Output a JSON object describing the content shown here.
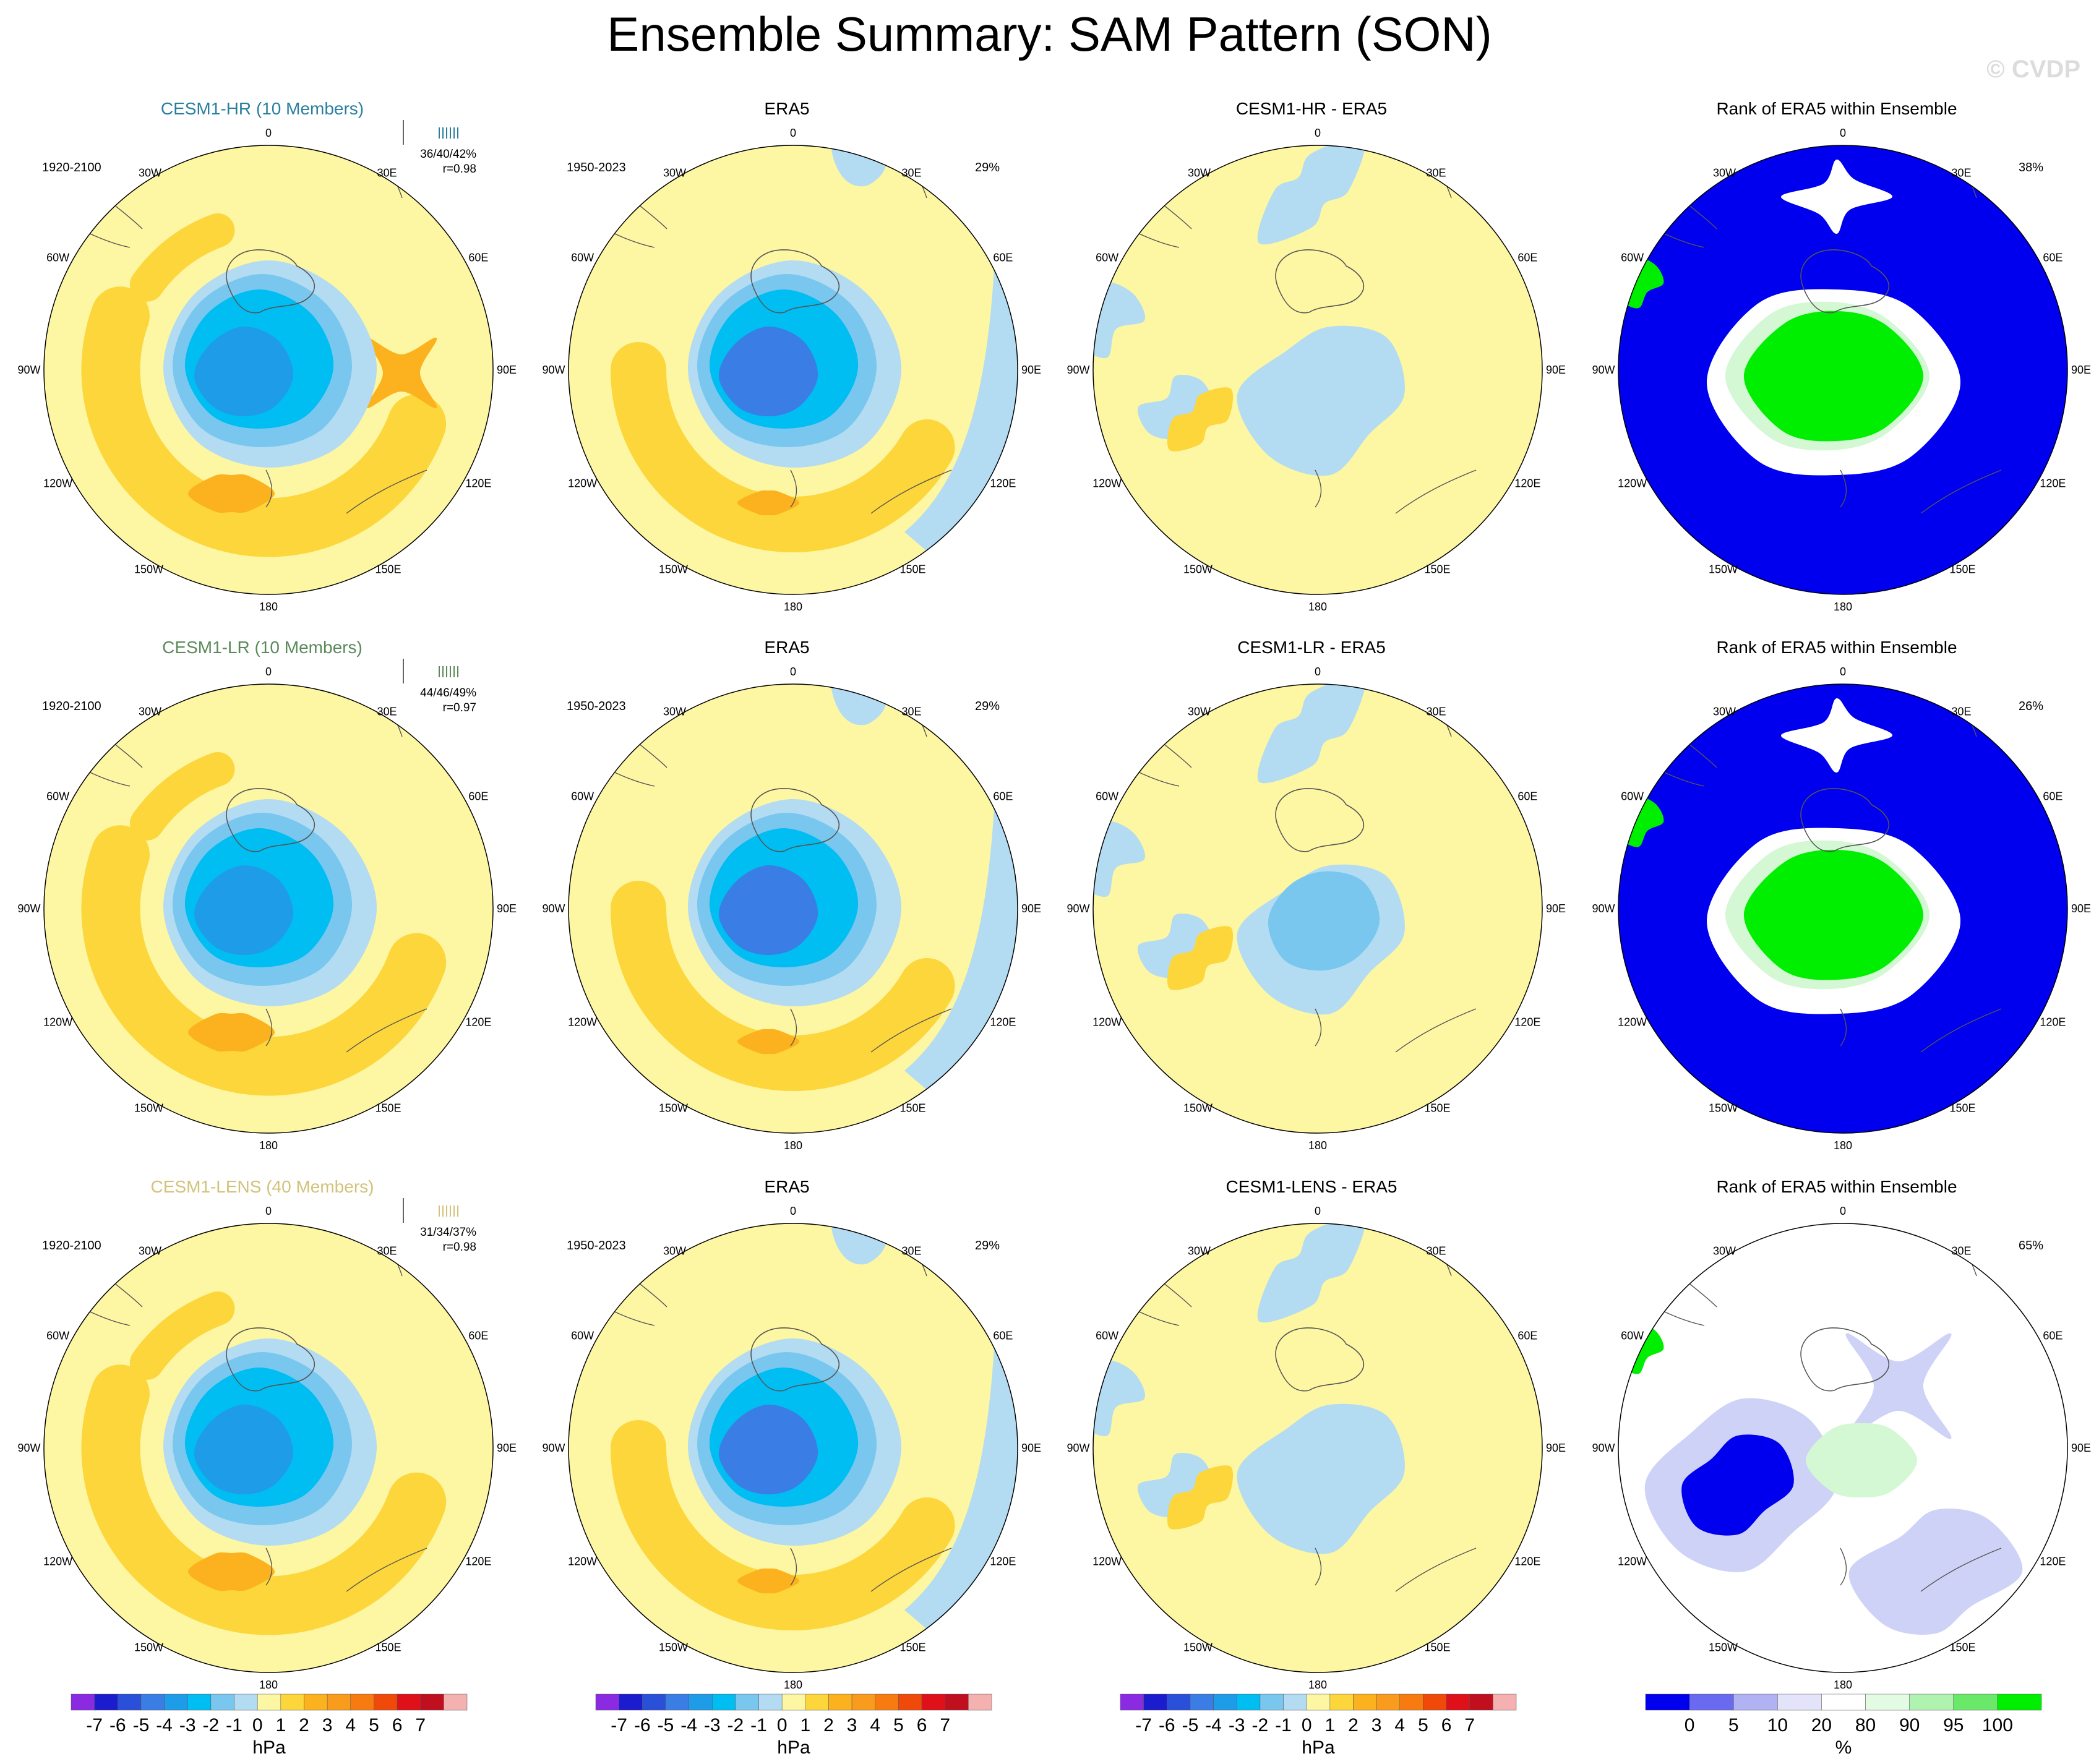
{
  "title": "Ensemble Summary: SAM Pattern (SON)",
  "watermark": "© CVDP",
  "colors": {
    "pos_light": "#fdf6a3",
    "pos_mid": "#fcd63a",
    "pos_dark": "#fbb21e",
    "pos_darker": "#f99b1c",
    "neg_light": "#b3dcf2",
    "neg_mid": "#79c7ef",
    "neg_dark": "#00bdf2",
    "neg_darker": "#1f9ce8",
    "neg_darkest": "#3a7de4",
    "rank_blue": "#0000ee",
    "rank_green": "#00ee00",
    "rank_lightblue": "#cfd2f7",
    "rank_lightgreen": "#d4f7d4",
    "coast": "#555555"
  },
  "lon_labels": [
    "0",
    "30E",
    "60E",
    "90E",
    "120E",
    "150E",
    "180",
    "150W",
    "120W",
    "90W",
    "60W",
    "30W"
  ],
  "rows": [
    {
      "model": {
        "title": "CESM1-HR (10 Members)",
        "title_color": "#2a7f9f",
        "period": "1920-2100",
        "stats": "36/40/42%",
        "corr": "r=0.98"
      },
      "era5": {
        "title": "ERA5",
        "period": "1950-2023",
        "pct": "29%"
      },
      "diff": {
        "title": "CESM1-HR - ERA5"
      },
      "rank": {
        "title": "Rank of ERA5 within Ensemble",
        "pct": "38%"
      }
    },
    {
      "model": {
        "title": "CESM1-LR (10 Members)",
        "title_color": "#5a8a5a",
        "period": "1920-2100",
        "stats": "44/46/49%",
        "corr": "r=0.97"
      },
      "era5": {
        "title": "ERA5",
        "period": "1950-2023",
        "pct": "29%"
      },
      "diff": {
        "title": "CESM1-LR - ERA5"
      },
      "rank": {
        "title": "Rank of ERA5 within Ensemble",
        "pct": "26%"
      }
    },
    {
      "model": {
        "title": "CESM1-LENS (40 Members)",
        "title_color": "#d2c27a",
        "period": "1920-2100",
        "stats": "31/34/37%",
        "corr": "r=0.98"
      },
      "era5": {
        "title": "ERA5",
        "period": "1950-2023",
        "pct": "29%"
      },
      "diff": {
        "title": "CESM1-LENS - ERA5"
      },
      "rank": {
        "title": "Rank of ERA5 within Ensemble",
        "pct": "65%"
      }
    }
  ],
  "colorbar_hpa": {
    "unit": "hPa",
    "colors": [
      "#8a2be2",
      "#1c1ccf",
      "#2a4fd8",
      "#3a7de4",
      "#1f9ce8",
      "#00bdf2",
      "#79c7ef",
      "#b3dcf2",
      "#fdf6a3",
      "#fcd63a",
      "#fbb21e",
      "#f99b1c",
      "#f77b10",
      "#f04a0a",
      "#e0101a",
      "#c01020",
      "#f5b0b0"
    ],
    "ticks": [
      "-7",
      "-6",
      "-5",
      "-4",
      "-3",
      "-2",
      "-1",
      "0",
      "1",
      "2",
      "3",
      "4",
      "5",
      "6",
      "7"
    ]
  },
  "colorbar_rank": {
    "unit": "%",
    "colors": [
      "#0000ee",
      "#6a6af0",
      "#b0b2f4",
      "#e3e4fa",
      "#ffffff",
      "#e3fae3",
      "#b0f2b0",
      "#6ae86a",
      "#00ee00"
    ],
    "ticks": [
      "0",
      "5",
      "10",
      "20",
      "80",
      "90",
      "95",
      "100"
    ]
  },
  "chart_data": [
    {
      "type": "heatmap",
      "title": "CESM1-HR (10 Members)",
      "period": "1920-2100",
      "units": "hPa",
      "levels": [
        -7,
        -6,
        -5,
        -4,
        -3,
        -2,
        -1,
        0,
        1,
        2,
        3,
        4,
        5,
        6,
        7
      ],
      "stats": "36/40/42%",
      "pattern_correlation": 0.98
    },
    {
      "type": "heatmap",
      "title": "ERA5",
      "period": "1950-2023",
      "units": "hPa",
      "pct_variance": "29%"
    },
    {
      "type": "heatmap",
      "title": "CESM1-HR - ERA5",
      "units": "hPa"
    },
    {
      "type": "heatmap",
      "title": "Rank of ERA5 within Ensemble",
      "units": "%",
      "pct": "38%",
      "levels": [
        0,
        5,
        10,
        20,
        80,
        90,
        95,
        100
      ]
    },
    {
      "type": "heatmap",
      "title": "CESM1-LR (10 Members)",
      "period": "1920-2100",
      "units": "hPa",
      "stats": "44/46/49%",
      "pattern_correlation": 0.97
    },
    {
      "type": "heatmap",
      "title": "ERA5",
      "period": "1950-2023",
      "units": "hPa",
      "pct_variance": "29%"
    },
    {
      "type": "heatmap",
      "title": "CESM1-LR - ERA5",
      "units": "hPa"
    },
    {
      "type": "heatmap",
      "title": "Rank of ERA5 within Ensemble",
      "units": "%",
      "pct": "26%"
    },
    {
      "type": "heatmap",
      "title": "CESM1-LENS (40 Members)",
      "period": "1920-2100",
      "units": "hPa",
      "stats": "31/34/37%",
      "pattern_correlation": 0.98
    },
    {
      "type": "heatmap",
      "title": "ERA5",
      "period": "1950-2023",
      "units": "hPa",
      "pct_variance": "29%"
    },
    {
      "type": "heatmap",
      "title": "CESM1-LENS - ERA5",
      "units": "hPa"
    },
    {
      "type": "heatmap",
      "title": "Rank of ERA5 within Ensemble",
      "units": "%",
      "pct": "65%"
    }
  ]
}
